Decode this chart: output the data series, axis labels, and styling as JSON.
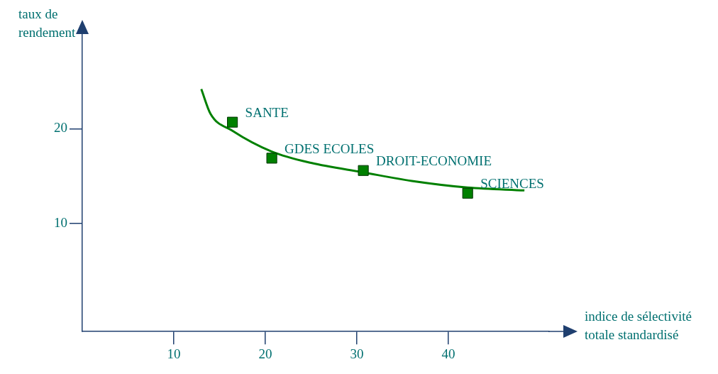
{
  "chart_data": {
    "type": "scatter",
    "xlabel": "indice de sélectivité totale standardisé",
    "ylabel": "taux de rendement",
    "xlim": [
      0,
      51
    ],
    "xticks": [
      10,
      20,
      30,
      40
    ],
    "ylim": [
      -1.4,
      30
    ],
    "yticks": [
      10,
      20
    ],
    "grid": false,
    "legend": false,
    "marker": "square",
    "series": [
      {
        "color": "#008000",
        "x": [
          16.4,
          20.7,
          30.7,
          42.1
        ],
        "values": [
          20.7,
          16.9,
          15.6,
          13.2
        ]
      },
      {
        "type": "line",
        "color": "#008000",
        "marker": "none",
        "x": [
          13.0,
          14.0,
          16.4,
          20.7,
          25.0,
          30.7,
          36.0,
          42.1,
          48.3
        ],
        "values": [
          24.2,
          21.6,
          19.8,
          17.6,
          16.4,
          15.4,
          14.5,
          13.8,
          13.5
        ]
      }
    ],
    "annotations": [
      {
        "text": "SANTE",
        "x": 16.4,
        "y": 20.7
      },
      {
        "text": "GDES ECOLES",
        "x": 20.7,
        "y": 16.9
      },
      {
        "text": "DROIT-ECONOMIE",
        "x": 30.7,
        "y": 15.6
      },
      {
        "text": "SCIENCES",
        "x": 42.1,
        "y": 13.2
      }
    ]
  }
}
